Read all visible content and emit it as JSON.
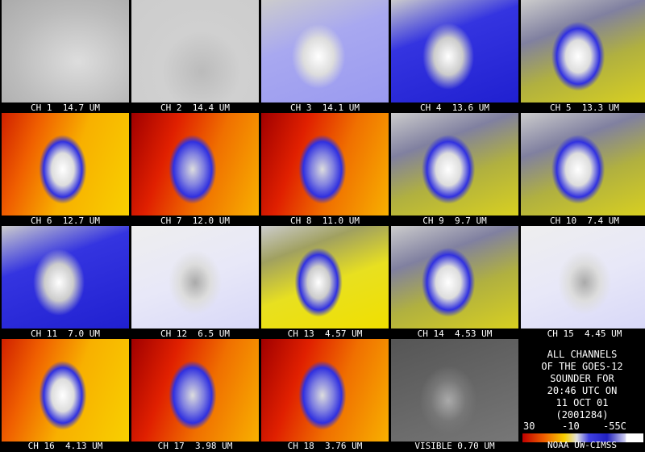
{
  "panels": [
    "CH 1  14.7 UM",
    "CH 2  14.4 UM",
    "CH 3  14.1 UM",
    "CH 4  13.6 UM",
    "CH 5  13.3 UM",
    "CH 6  12.7 UM",
    "CH 7  12.0 UM",
    "CH 8  11.0 UM",
    "CH 9  9.7 UM",
    "CH 10  7.4 UM",
    "CH 11  7.0 UM",
    "CH 12  6.5 UM",
    "CH 13  4.57 UM",
    "CH 14  4.53 UM",
    "CH 15  4.45 UM",
    "CH 16  4.13 UM",
    "CH 17  3.98 UM",
    "CH 18  3.76 UM",
    "VISIBLE 0.70 UM"
  ],
  "caption": [
    "ALL CHANNELS",
    "OF THE GOES-12",
    "SOUNDER FOR",
    "20:46 UTC ON",
    "11 OCT 01",
    "(2001284)"
  ],
  "scale": [
    "30",
    "-10",
    "-55C"
  ],
  "credit": "NOAA UW-CIMSS"
}
